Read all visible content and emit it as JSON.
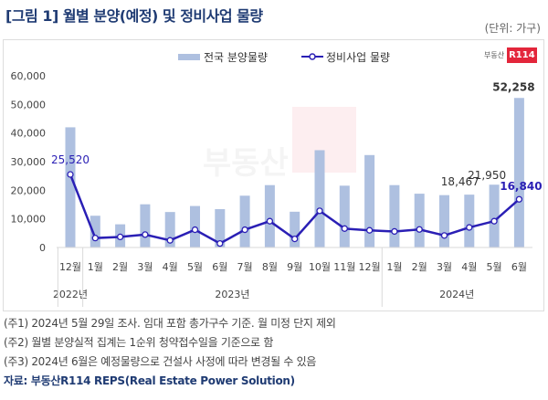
{
  "title": "[그림 1] 월별 분양(예정) 및 정비사업 물량",
  "unit": "(단위: 가구)",
  "logo_text": "부동산R114",
  "logo": {
    "prefix": "부동산",
    "badge": "R114"
  },
  "notes": [
    "(주1) 2024년 5월 29일 조사. 임대 포함 총가구수 기준. 월 미정 단지 제외",
    "(주2) 월별 분양실적 집계는 1순위 청약접수일을 기준으로 함",
    "(주3) 2024년 6월은 예정물량으로 건설사 사정에 따라 변경될 수 있음"
  ],
  "source": "자료: 부동산R114 REPS(Real Estate Power Solution)",
  "chart_data": {
    "type": "bar",
    "categories": [
      "12월",
      "1월",
      "2월",
      "3월",
      "4월",
      "5월",
      "6월",
      "7월",
      "8월",
      "9월",
      "10월",
      "11월",
      "12월",
      "1월",
      "2월",
      "3월",
      "4월",
      "5월",
      "6월"
    ],
    "year_groups": [
      {
        "label": "2022년",
        "count": 1
      },
      {
        "label": "2023년",
        "count": 12
      },
      {
        "label": "2024년",
        "count": 6
      }
    ],
    "ylim": [
      0,
      60000
    ],
    "yticks": [
      "0",
      "10,000",
      "20,000",
      "30,000",
      "40,000",
      "50,000",
      "60,000"
    ],
    "ytick_values": [
      0,
      10000,
      20000,
      30000,
      40000,
      50000,
      60000
    ],
    "legend_position": "top-center",
    "series": [
      {
        "name": "전국 분양물량",
        "type": "bar",
        "color": "#aec0e0",
        "values": [
          42000,
          11100,
          8100,
          15100,
          12400,
          14500,
          13400,
          18100,
          21800,
          12500,
          34000,
          21600,
          32300,
          21800,
          18800,
          18300,
          18467,
          21950,
          52258
        ]
      },
      {
        "name": "정비사업 물량",
        "type": "line",
        "color": "#2a1fb5",
        "values": [
          25520,
          3300,
          3700,
          4500,
          2500,
          6200,
          1400,
          6200,
          9200,
          3000,
          12800,
          6600,
          6000,
          5600,
          6300,
          4200,
          7000,
          9200,
          16840
        ]
      }
    ],
    "data_labels": [
      {
        "series": 1,
        "index": 0,
        "text": "25,520"
      },
      {
        "series": 0,
        "index": 16,
        "text": "18,467"
      },
      {
        "series": 0,
        "index": 17,
        "text": "21,950"
      },
      {
        "series": 0,
        "index": 18,
        "text": "52,258"
      },
      {
        "series": 1,
        "index": 18,
        "text": "16,840"
      }
    ]
  }
}
